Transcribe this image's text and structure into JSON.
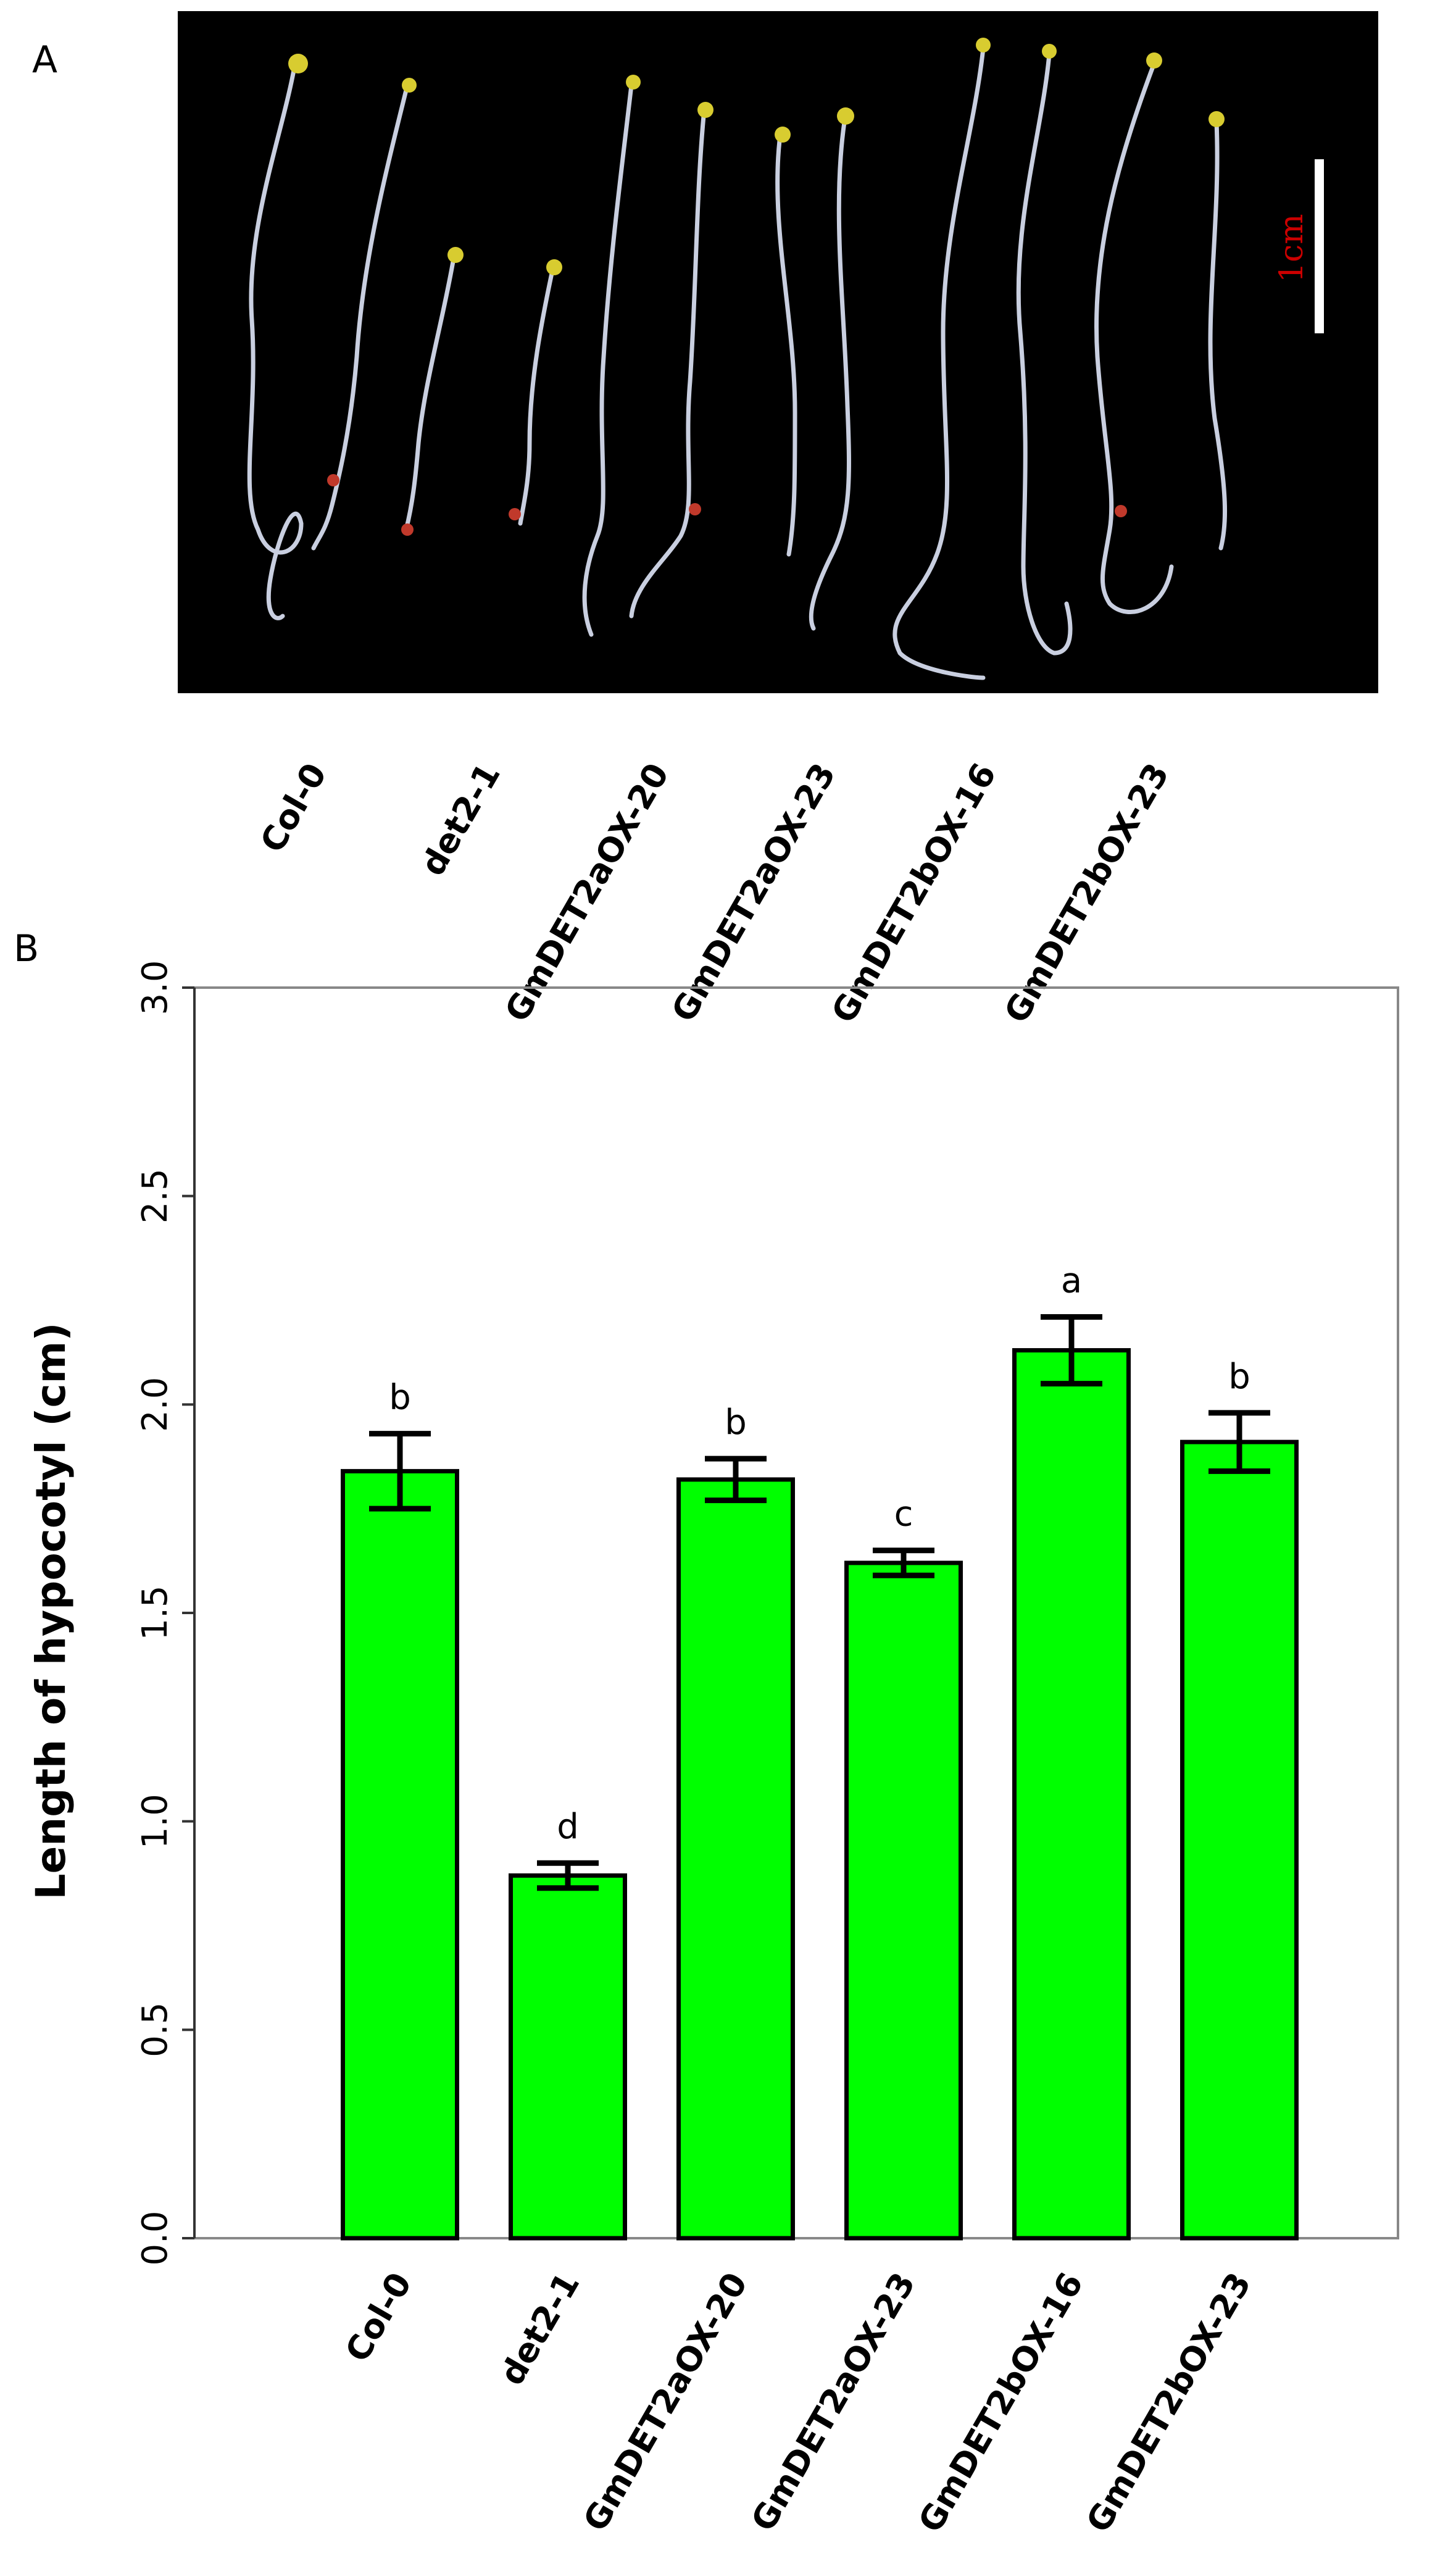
{
  "panels": {
    "a": "A",
    "b": "B"
  },
  "photo": {
    "scale_bar_label": "1cm",
    "genotype_labels": [
      "Col-0",
      "det2-1",
      "GmDET2aOX-20",
      "GmDET2aOX-23",
      "GmDET2bOX-16",
      "GmDET2bOX-23"
    ]
  },
  "chart_data": {
    "type": "bar",
    "title": "",
    "xlabel": "",
    "ylabel": "Length of hypocotyl (cm)",
    "categories": [
      "Col-0",
      "det2-1",
      "GmDET2aOX-20",
      "GmDET2aOX-23",
      "GmDET2bOX-16",
      "GmDET2bOX-23"
    ],
    "values": [
      1.84,
      0.87,
      1.82,
      1.62,
      2.13,
      1.91
    ],
    "errors": [
      0.09,
      0.03,
      0.05,
      0.03,
      0.08,
      0.07
    ],
    "significance": [
      "b",
      "d",
      "b",
      "c",
      "a",
      "b"
    ],
    "ylim": [
      0,
      3.0
    ],
    "yticks": [
      "0.0",
      "0.5",
      "1.0",
      "1.5",
      "2.0",
      "2.5",
      "3.0"
    ],
    "bar_color": "#00ff00",
    "grid": false
  }
}
